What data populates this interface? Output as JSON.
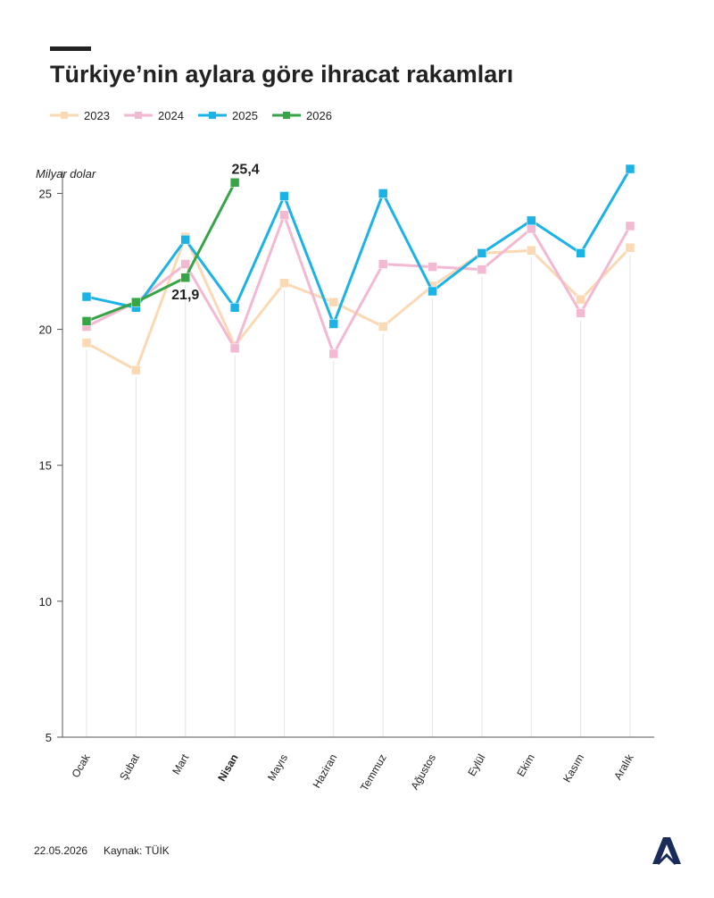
{
  "chart_data": {
    "type": "line",
    "title": "Türkiye’nin aylara göre ihracat rakamları",
    "y_label": "Milyar dolar",
    "categories": [
      "Ocak",
      "Şubat",
      "Mart",
      "Nisan",
      "Mayıs",
      "Haziran",
      "Temmuz",
      "Ağustos",
      "Eylül",
      "Ekim",
      "Kasım",
      "Aralık"
    ],
    "highlight_category": 3,
    "series": [
      {
        "name": "2023",
        "color": "#fad9b4",
        "values": [
          19.5,
          18.5,
          23.4,
          19.4,
          21.7,
          21.0,
          20.1,
          21.6,
          22.8,
          22.9,
          21.1,
          23.0
        ]
      },
      {
        "name": "2024",
        "color": "#f3b8d2",
        "values": [
          20.1,
          21.0,
          22.4,
          19.3,
          24.2,
          19.1,
          22.4,
          22.3,
          22.2,
          23.7,
          20.6,
          23.8
        ]
      },
      {
        "name": "2025",
        "color": "#1bb3e6",
        "values": [
          21.2,
          20.8,
          23.3,
          20.8,
          24.9,
          20.2,
          25.0,
          21.4,
          22.8,
          24.0,
          22.8,
          25.9
        ]
      },
      {
        "name": "2026",
        "color": "#38a447",
        "values": [
          20.3,
          21.0,
          21.9,
          25.4,
          null,
          null,
          null,
          null,
          null,
          null,
          null,
          null
        ],
        "value_labels": [
          null,
          null,
          "21,9",
          "25,4",
          null,
          null,
          null,
          null,
          null,
          null,
          null,
          null
        ]
      }
    ],
    "ylim": [
      5,
      26
    ],
    "yticks": [
      5,
      10,
      15,
      20,
      25
    ],
    "date": "22.05.2026",
    "source": "Kaynak: TÜİK"
  }
}
